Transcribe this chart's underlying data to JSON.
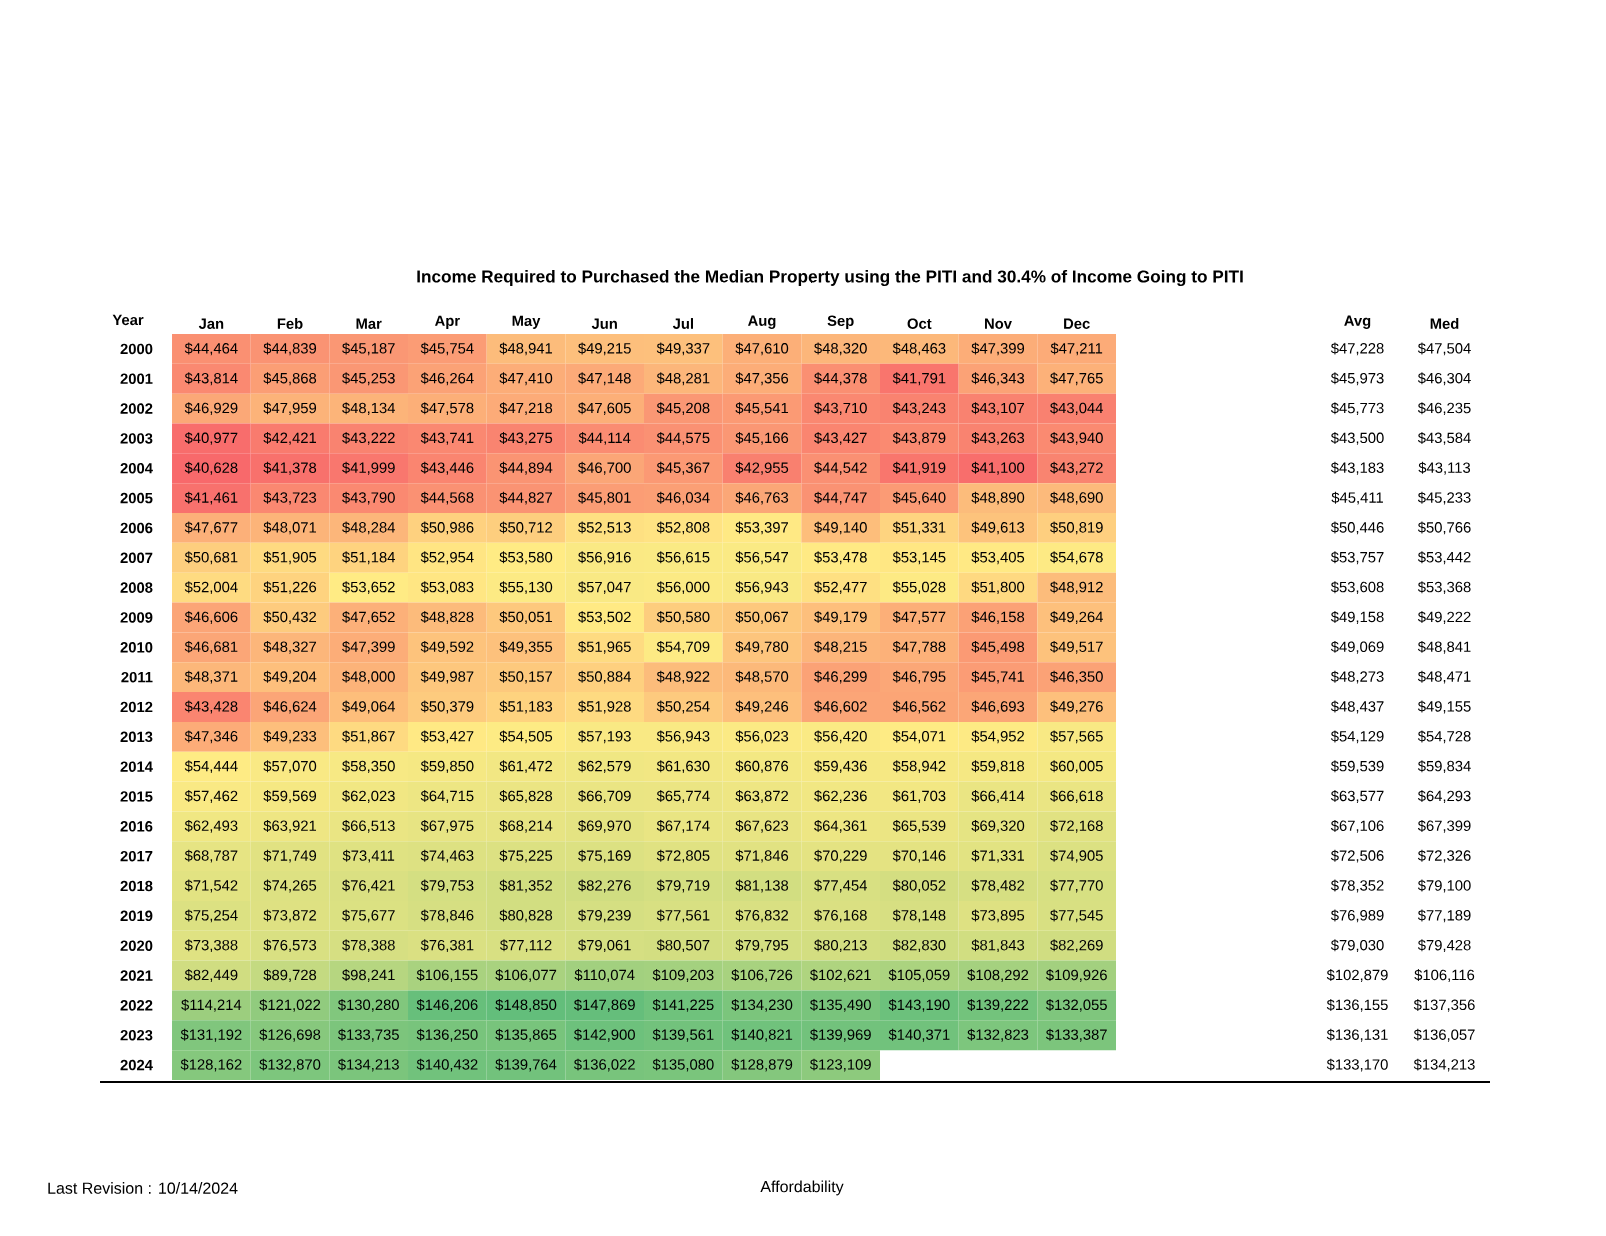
{
  "chart_data": [
    {
      "type": "heatmap",
      "title": "Income Required to Purchased the Median Property using the PITI and 30.4% of Income Going to PITI",
      "ylabel": "Year",
      "annotations": [
        "Last Revision : 10/14/2024",
        "Affordability"
      ],
      "categories": [
        "Jan",
        "Feb",
        "Mar",
        "Apr",
        "May",
        "Jun",
        "Jul",
        "Aug",
        "Sep",
        "Oct",
        "Nov",
        "Dec"
      ],
      "y_categories": [
        "2000",
        "2001",
        "2002",
        "2003",
        "2004",
        "2005",
        "2006",
        "2007",
        "2008",
        "2009",
        "2010",
        "2011",
        "2012",
        "2013",
        "2014",
        "2015",
        "2016",
        "2017",
        "2018",
        "2019",
        "2020",
        "2021",
        "2022",
        "2023",
        "2024"
      ],
      "cells": [
        [
          44464,
          44839,
          45187,
          45754,
          48941,
          49215,
          49337,
          47610,
          48320,
          48463,
          47399,
          47211
        ],
        [
          43814,
          45868,
          45253,
          46264,
          47410,
          47148,
          48281,
          47356,
          44378,
          41791,
          46343,
          47765
        ],
        [
          46929,
          47959,
          48134,
          47578,
          47218,
          47605,
          45208,
          45541,
          43710,
          43243,
          43107,
          43044
        ],
        [
          40977,
          42421,
          43222,
          43741,
          43275,
          44114,
          44575,
          45166,
          43427,
          43879,
          43263,
          43940
        ],
        [
          40628,
          41378,
          41999,
          43446,
          44894,
          46700,
          45367,
          42955,
          44542,
          41919,
          41100,
          43272
        ],
        [
          41461,
          43723,
          43790,
          44568,
          44827,
          45801,
          46034,
          46763,
          44747,
          45640,
          48890,
          48690
        ],
        [
          47677,
          48071,
          48284,
          50986,
          50712,
          52513,
          52808,
          53397,
          49140,
          51331,
          49613,
          50819
        ],
        [
          50681,
          51905,
          51184,
          52954,
          53580,
          56916,
          56615,
          56547,
          53478,
          53145,
          53405,
          54678
        ],
        [
          52004,
          51226,
          53652,
          53083,
          55130,
          57047,
          56000,
          56943,
          52477,
          55028,
          51800,
          48912
        ],
        [
          46606,
          50432,
          47652,
          48828,
          50051,
          53502,
          50580,
          50067,
          49179,
          47577,
          46158,
          49264
        ],
        [
          46681,
          48327,
          47399,
          49592,
          49355,
          51965,
          54709,
          49780,
          48215,
          47788,
          45498,
          49517
        ],
        [
          48371,
          49204,
          48000,
          49987,
          50157,
          50884,
          48922,
          48570,
          46299,
          46795,
          45741,
          46350
        ],
        [
          43428,
          46624,
          49064,
          50379,
          51183,
          51928,
          50254,
          49246,
          46602,
          46562,
          46693,
          49276
        ],
        [
          47346,
          49233,
          51867,
          53427,
          54505,
          57193,
          56943,
          56023,
          56420,
          54071,
          54952,
          57565
        ],
        [
          54444,
          57070,
          58350,
          59850,
          61472,
          62579,
          61630,
          60876,
          59436,
          58942,
          59818,
          60005
        ],
        [
          57462,
          59569,
          62023,
          64715,
          65828,
          66709,
          65774,
          63872,
          62236,
          61703,
          66414,
          66618
        ],
        [
          62493,
          63921,
          66513,
          67975,
          68214,
          69970,
          67174,
          67623,
          64361,
          65539,
          69320,
          72168
        ],
        [
          68787,
          71749,
          73411,
          74463,
          75225,
          75169,
          72805,
          71846,
          70229,
          70146,
          71331,
          74905
        ],
        [
          71542,
          74265,
          76421,
          79753,
          81352,
          82276,
          79719,
          81138,
          77454,
          80052,
          78482,
          77770
        ],
        [
          75254,
          73872,
          75677,
          78846,
          80828,
          79239,
          77561,
          76832,
          76168,
          78148,
          73895,
          77545
        ],
        [
          73388,
          76573,
          78388,
          76381,
          77112,
          79061,
          80507,
          79795,
          80213,
          82830,
          81843,
          82269
        ],
        [
          82449,
          89728,
          98241,
          106155,
          106077,
          110074,
          109203,
          106726,
          102621,
          105059,
          108292,
          109926
        ],
        [
          114214,
          121022,
          130280,
          146206,
          148850,
          147869,
          141225,
          134230,
          135490,
          143190,
          139222,
          132055
        ],
        [
          131192,
          126698,
          133735,
          136250,
          135865,
          142900,
          139561,
          140821,
          139969,
          140371,
          132823,
          133387
        ],
        [
          128162,
          132870,
          134213,
          140432,
          139764,
          136022,
          135080,
          128879,
          123109,
          null,
          null,
          null
        ]
      ],
      "cell_labels": [
        [
          "$44,464",
          "$44,839",
          "$45,187",
          "$45,754",
          "$48,941",
          "$49,215",
          "$49,337",
          "$47,610",
          "$48,320",
          "$48,463",
          "$47,399",
          "$47,211"
        ],
        [
          "$43,814",
          "$45,868",
          "$45,253",
          "$46,264",
          "$47,410",
          "$47,148",
          "$48,281",
          "$47,356",
          "$44,378",
          "$41,791",
          "$46,343",
          "$47,765"
        ],
        [
          "$46,929",
          "$47,959",
          "$48,134",
          "$47,578",
          "$47,218",
          "$47,605",
          "$45,208",
          "$45,541",
          "$43,710",
          "$43,243",
          "$43,107",
          "$43,044"
        ],
        [
          "$40,977",
          "$42,421",
          "$43,222",
          "$43,741",
          "$43,275",
          "$44,114",
          "$44,575",
          "$45,166",
          "$43,427",
          "$43,879",
          "$43,263",
          "$43,940"
        ],
        [
          "$40,628",
          "$41,378",
          "$41,999",
          "$43,446",
          "$44,894",
          "$46,700",
          "$45,367",
          "$42,955",
          "$44,542",
          "$41,919",
          "$41,100",
          "$43,272"
        ],
        [
          "$41,461",
          "$43,723",
          "$43,790",
          "$44,568",
          "$44,827",
          "$45,801",
          "$46,034",
          "$46,763",
          "$44,747",
          "$45,640",
          "$48,890",
          "$48,690"
        ],
        [
          "$47,677",
          "$48,071",
          "$48,284",
          "$50,986",
          "$50,712",
          "$52,513",
          "$52,808",
          "$53,397",
          "$49,140",
          "$51,331",
          "$49,613",
          "$50,819"
        ],
        [
          "$50,681",
          "$51,905",
          "$51,184",
          "$52,954",
          "$53,580",
          "$56,916",
          "$56,615",
          "$56,547",
          "$53,478",
          "$53,145",
          "$53,405",
          "$54,678"
        ],
        [
          "$52,004",
          "$51,226",
          "$53,652",
          "$53,083",
          "$55,130",
          "$57,047",
          "$56,000",
          "$56,943",
          "$52,477",
          "$55,028",
          "$51,800",
          "$48,912"
        ],
        [
          "$46,606",
          "$50,432",
          "$47,652",
          "$48,828",
          "$50,051",
          "$53,502",
          "$50,580",
          "$50,067",
          "$49,179",
          "$47,577",
          "$46,158",
          "$49,264"
        ],
        [
          "$46,681",
          "$48,327",
          "$47,399",
          "$49,592",
          "$49,355",
          "$51,965",
          "$54,709",
          "$49,780",
          "$48,215",
          "$47,788",
          "$45,498",
          "$49,517"
        ],
        [
          "$48,371",
          "$49,204",
          "$48,000",
          "$49,987",
          "$50,157",
          "$50,884",
          "$48,922",
          "$48,570",
          "$46,299",
          "$46,795",
          "$45,741",
          "$46,350"
        ],
        [
          "$43,428",
          "$46,624",
          "$49,064",
          "$50,379",
          "$51,183",
          "$51,928",
          "$50,254",
          "$49,246",
          "$46,602",
          "$46,562",
          "$46,693",
          "$49,276"
        ],
        [
          "$47,346",
          "$49,233",
          "$51,867",
          "$53,427",
          "$54,505",
          "$57,193",
          "$56,943",
          "$56,023",
          "$56,420",
          "$54,071",
          "$54,952",
          "$57,565"
        ],
        [
          "$54,444",
          "$57,070",
          "$58,350",
          "$59,850",
          "$61,472",
          "$62,579",
          "$61,630",
          "$60,876",
          "$59,436",
          "$58,942",
          "$59,818",
          "$60,005"
        ],
        [
          "$57,462",
          "$59,569",
          "$62,023",
          "$64,715",
          "$65,828",
          "$66,709",
          "$65,774",
          "$63,872",
          "$62,236",
          "$61,703",
          "$66,414",
          "$66,618"
        ],
        [
          "$62,493",
          "$63,921",
          "$66,513",
          "$67,975",
          "$68,214",
          "$69,970",
          "$67,174",
          "$67,623",
          "$64,361",
          "$65,539",
          "$69,320",
          "$72,168"
        ],
        [
          "$68,787",
          "$71,749",
          "$73,411",
          "$74,463",
          "$75,225",
          "$75,169",
          "$72,805",
          "$71,846",
          "$70,229",
          "$70,146",
          "$71,331",
          "$74,905"
        ],
        [
          "$71,542",
          "$74,265",
          "$76,421",
          "$79,753",
          "$81,352",
          "$82,276",
          "$79,719",
          "$81,138",
          "$77,454",
          "$80,052",
          "$78,482",
          "$77,770"
        ],
        [
          "$75,254",
          "$73,872",
          "$75,677",
          "$78,846",
          "$80,828",
          "$79,239",
          "$77,561",
          "$76,832",
          "$76,168",
          "$78,148",
          "$73,895",
          "$77,545"
        ],
        [
          "$73,388",
          "$76,573",
          "$78,388",
          "$76,381",
          "$77,112",
          "$79,061",
          "$80,507",
          "$79,795",
          "$80,213",
          "$82,830",
          "$81,843",
          "$82,269"
        ],
        [
          "$82,449",
          "$89,728",
          "$98,241",
          "$106,155",
          "$106,077",
          "$110,074",
          "$109,203",
          "$106,726",
          "$102,621",
          "$105,059",
          "$108,292",
          "$109,926"
        ],
        [
          "$114,214",
          "$121,022",
          "$130,280",
          "$146,206",
          "$148,850",
          "$147,869",
          "$141,225",
          "$134,230",
          "$135,490",
          "$143,190",
          "$139,222",
          "$132,055"
        ],
        [
          "$131,192",
          "$126,698",
          "$133,735",
          "$136,250",
          "$135,865",
          "$142,900",
          "$139,561",
          "$140,821",
          "$139,969",
          "$140,371",
          "$132,823",
          "$133,387"
        ],
        [
          "$128,162",
          "$132,870",
          "$134,213",
          "$140,432",
          "$139,764",
          "$136,022",
          "$135,080",
          "$128,879",
          "$123,109",
          null,
          null,
          null
        ]
      ]
    },
    {
      "type": "heatmap",
      "tick_labels": "x",
      "categories": [
        "Avg",
        "Med"
      ],
      "y_categories": [
        "2000",
        "2001",
        "2002",
        "2003",
        "2004",
        "2005",
        "2006",
        "2007",
        "2008",
        "2009",
        "2010",
        "2011",
        "2012",
        "2013",
        "2014",
        "2015",
        "2016",
        "2017",
        "2018",
        "2019",
        "2020",
        "2021",
        "2022",
        "2023",
        "2024"
      ],
      "cells": [
        [
          47228,
          47504
        ],
        [
          45973,
          46304
        ],
        [
          45773,
          46235
        ],
        [
          43500,
          43584
        ],
        [
          43183,
          43113
        ],
        [
          45411,
          45233
        ],
        [
          50446,
          50766
        ],
        [
          53757,
          53442
        ],
        [
          53608,
          53368
        ],
        [
          49158,
          49222
        ],
        [
          49069,
          48841
        ],
        [
          48273,
          48471
        ],
        [
          48437,
          49155
        ],
        [
          54129,
          54728
        ],
        [
          59539,
          59834
        ],
        [
          63577,
          64293
        ],
        [
          67106,
          67399
        ],
        [
          72506,
          72326
        ],
        [
          78352,
          79100
        ],
        [
          76989,
          77189
        ],
        [
          79030,
          79428
        ],
        [
          102879,
          106116
        ],
        [
          136155,
          137356
        ],
        [
          136131,
          136057
        ],
        [
          133170,
          134213
        ]
      ],
      "cell_labels": [
        [
          "$47,228",
          "$47,504"
        ],
        [
          "$45,973",
          "$46,304"
        ],
        [
          "$45,773",
          "$46,235"
        ],
        [
          "$43,500",
          "$43,584"
        ],
        [
          "$43,183",
          "$43,113"
        ],
        [
          "$45,411",
          "$45,233"
        ],
        [
          "$50,446",
          "$50,766"
        ],
        [
          "$53,757",
          "$53,442"
        ],
        [
          "$53,608",
          "$53,368"
        ],
        [
          "$49,158",
          "$49,222"
        ],
        [
          "$49,069",
          "$48,841"
        ],
        [
          "$48,273",
          "$48,471"
        ],
        [
          "$48,437",
          "$49,155"
        ],
        [
          "$54,129",
          "$54,728"
        ],
        [
          "$59,539",
          "$59,834"
        ],
        [
          "$63,577",
          "$64,293"
        ],
        [
          "$67,106",
          "$67,399"
        ],
        [
          "$72,506",
          "$72,326"
        ],
        [
          "$78,352",
          "$79,100"
        ],
        [
          "$76,989",
          "$77,189"
        ],
        [
          "$79,030",
          "$79,428"
        ],
        [
          "$102,879",
          "$106,116"
        ],
        [
          "$136,155",
          "$137,356"
        ],
        [
          "$136,131",
          "$136,057"
        ],
        [
          "$133,170",
          "$134,213"
        ]
      ]
    }
  ]
}
